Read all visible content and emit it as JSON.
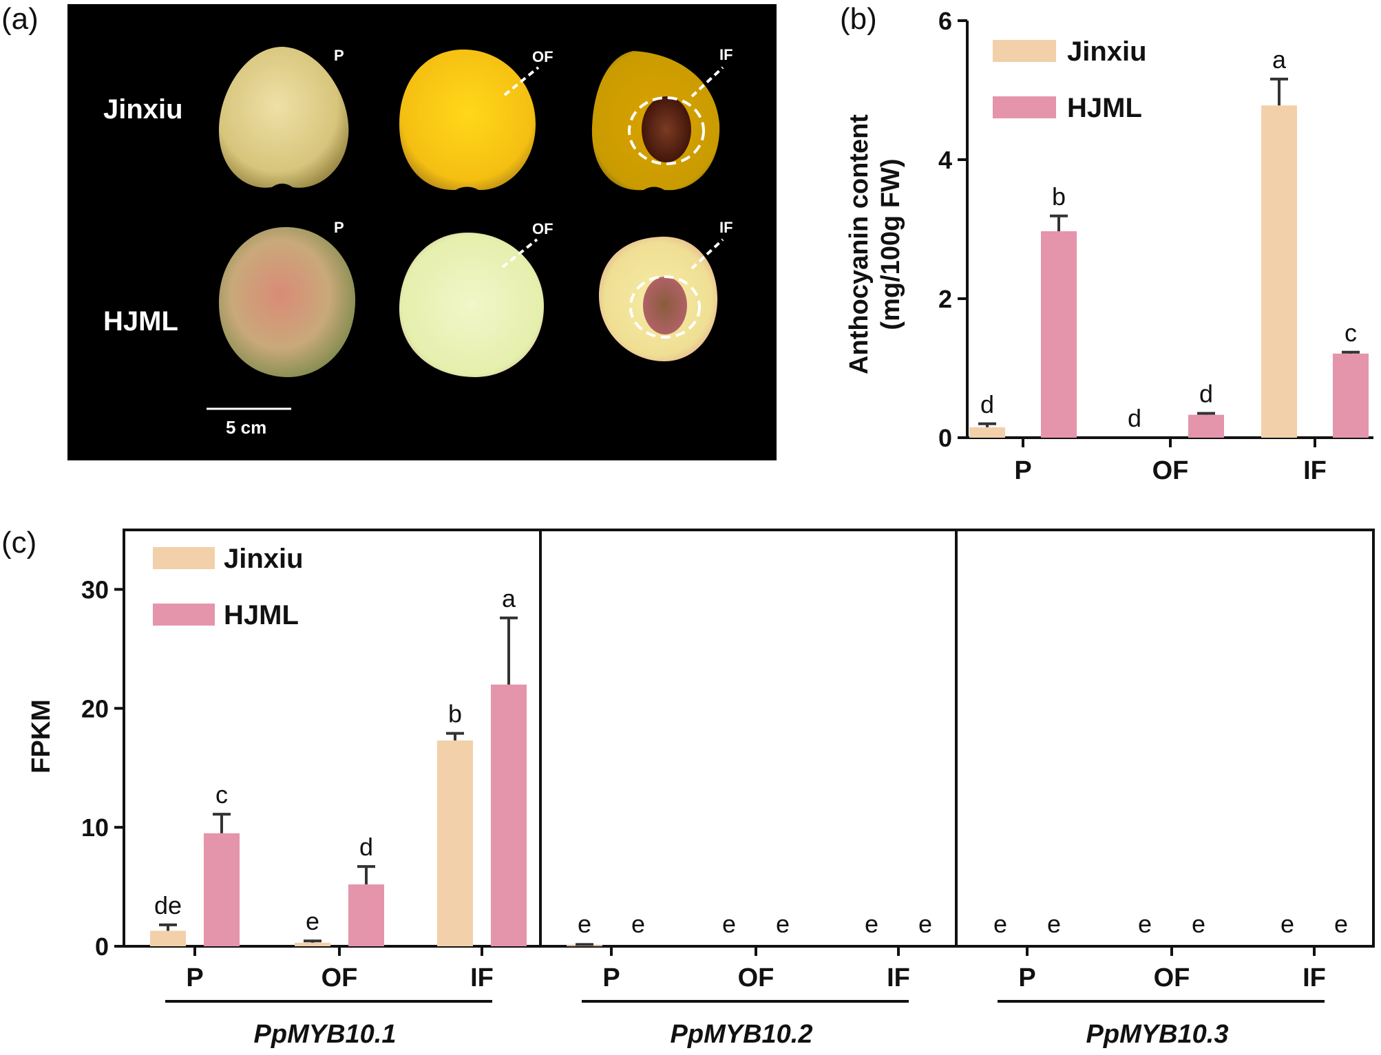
{
  "panel_labels": {
    "a": "(a)",
    "b": "(b)",
    "c": "(c)"
  },
  "photo": {
    "row_labels": [
      "Jinxiu",
      "HJML"
    ],
    "tissue_labels": [
      "P",
      "OF",
      "IF"
    ],
    "scale_bar_label": "5 cm"
  },
  "colors": {
    "jinxiu": "#f2d0aa",
    "hjml": "#e494ab",
    "axis": "#111111",
    "photo_bg": "#000000"
  },
  "chart_data": [
    {
      "type": "bar",
      "panel": "b",
      "categories": [
        "P",
        "OF",
        "IF"
      ],
      "ylabel_line1": "Anthocyanin content",
      "ylabel_line2": "(mg/100g FW)",
      "ylim": [
        0,
        6
      ],
      "yticks": [
        0,
        2,
        4,
        6
      ],
      "legend_position": "top-left",
      "series": [
        {
          "name": "Jinxiu",
          "values": [
            0.15,
            0.0,
            4.78
          ],
          "errors": [
            0.05,
            0.0,
            0.38
          ],
          "letters": [
            "d",
            "d",
            "a"
          ]
        },
        {
          "name": "HJML",
          "values": [
            2.97,
            0.33,
            1.21
          ],
          "errors": [
            0.22,
            0.02,
            0.02
          ],
          "letters": [
            "b",
            "d",
            "c"
          ]
        }
      ]
    },
    {
      "type": "bar",
      "panel": "c",
      "ylabel": "FPKM",
      "ylim": [
        0,
        35
      ],
      "yticks": [
        0,
        10,
        20,
        30
      ],
      "legend_position": "top-left",
      "facets": [
        {
          "gene": "PpMYB10.1",
          "categories": [
            "P",
            "OF",
            "IF"
          ],
          "series": [
            {
              "name": "Jinxiu",
              "values": [
                1.3,
                0.3,
                17.3
              ],
              "errors": [
                0.5,
                0.15,
                0.6
              ],
              "letters": [
                "de",
                "e",
                "b"
              ]
            },
            {
              "name": "HJML",
              "values": [
                9.5,
                5.2,
                22.0
              ],
              "errors": [
                1.6,
                1.5,
                5.6
              ],
              "letters": [
                "c",
                "d",
                "a"
              ]
            }
          ]
        },
        {
          "gene": "PpMYB10.2",
          "categories": [
            "P",
            "OF",
            "IF"
          ],
          "series": [
            {
              "name": "Jinxiu",
              "values": [
                0.1,
                0.0,
                0.0
              ],
              "errors": [
                0.05,
                0.0,
                0.0
              ],
              "letters": [
                "e",
                "e",
                "e"
              ]
            },
            {
              "name": "HJML",
              "values": [
                0.0,
                0.0,
                0.0
              ],
              "errors": [
                0.0,
                0.0,
                0.0
              ],
              "letters": [
                "e",
                "e",
                "e"
              ]
            }
          ]
        },
        {
          "gene": "PpMYB10.3",
          "categories": [
            "P",
            "OF",
            "IF"
          ],
          "series": [
            {
              "name": "Jinxiu",
              "values": [
                0.0,
                0.0,
                0.0
              ],
              "errors": [
                0.0,
                0.0,
                0.0
              ],
              "letters": [
                "e",
                "e",
                "e"
              ]
            },
            {
              "name": "HJML",
              "values": [
                0.0,
                0.0,
                0.0
              ],
              "errors": [
                0.0,
                0.0,
                0.0
              ],
              "letters": [
                "e",
                "e",
                "e"
              ]
            }
          ]
        }
      ]
    }
  ]
}
